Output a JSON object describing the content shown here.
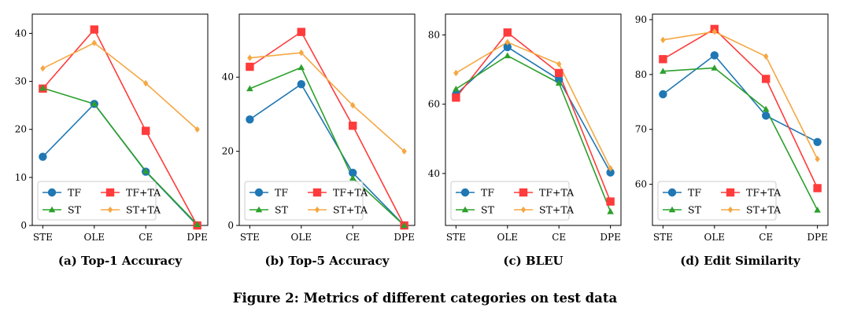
{
  "figure_caption": "Figure 2: Metrics of different categories on test data",
  "colors": {
    "TF": "#1f77b4",
    "TF+TA": "#ff3b3b",
    "ST": "#2ca02c",
    "ST+TA": "#f5a742"
  },
  "chart_data": [
    {
      "type": "line",
      "caption": "(a) Top-1 Accuracy",
      "categories": [
        "STE",
        "OLE",
        "CE",
        "DPE"
      ],
      "ylim": [
        0,
        44
      ],
      "yticks": [
        0,
        10,
        20,
        30,
        40
      ],
      "legend_placement": "lower-left",
      "grid": false,
      "series": [
        {
          "name": "TF",
          "values": [
            14.3,
            25.3,
            11.2,
            0.0
          ]
        },
        {
          "name": "TF+TA",
          "values": [
            28.5,
            40.8,
            19.7,
            0.0
          ]
        },
        {
          "name": "ST",
          "values": [
            28.6,
            25.3,
            11.3,
            0.2
          ]
        },
        {
          "name": "ST+TA",
          "values": [
            32.7,
            38.0,
            29.6,
            20.0
          ]
        }
      ]
    },
    {
      "type": "line",
      "caption": "(b) Top-5 Accuracy",
      "categories": [
        "STE",
        "OLE",
        "CE",
        "DPE"
      ],
      "ylim": [
        0,
        57
      ],
      "yticks": [
        0,
        20,
        40
      ],
      "legend_placement": "lower-left",
      "grid": false,
      "series": [
        {
          "name": "TF",
          "values": [
            28.6,
            38.1,
            14.2,
            0.0
          ]
        },
        {
          "name": "TF+TA",
          "values": [
            42.8,
            52.2,
            26.9,
            0.0
          ]
        },
        {
          "name": "ST",
          "values": [
            36.9,
            42.6,
            12.8,
            0.0
          ]
        },
        {
          "name": "ST+TA",
          "values": [
            45.2,
            46.6,
            32.4,
            20.0
          ]
        }
      ]
    },
    {
      "type": "line",
      "caption": "(c) BLEU",
      "categories": [
        "STE",
        "OLE",
        "CE",
        "DPE"
      ],
      "ylim": [
        25,
        86
      ],
      "yticks": [
        40,
        60,
        80
      ],
      "legend_placement": "lower-left",
      "grid": false,
      "series": [
        {
          "name": "TF",
          "values": [
            62.8,
            76.5,
            67.1,
            40.3
          ]
        },
        {
          "name": "TF+TA",
          "values": [
            61.9,
            80.7,
            69.0,
            31.9
          ]
        },
        {
          "name": "ST",
          "values": [
            64.4,
            74.0,
            66.1,
            29.0
          ]
        },
        {
          "name": "ST+TA",
          "values": [
            69.0,
            77.9,
            71.6,
            41.5
          ]
        }
      ]
    },
    {
      "type": "line",
      "caption": "(d) Edit Similarity",
      "categories": [
        "STE",
        "OLE",
        "CE",
        "DPE"
      ],
      "ylim": [
        52.5,
        91
      ],
      "yticks": [
        60,
        70,
        80,
        90
      ],
      "legend_placement": "lower-left",
      "grid": false,
      "series": [
        {
          "name": "TF",
          "values": [
            76.4,
            83.5,
            72.5,
            67.7
          ]
        },
        {
          "name": "TF+TA",
          "values": [
            82.8,
            88.3,
            79.2,
            59.3
          ]
        },
        {
          "name": "ST",
          "values": [
            80.6,
            81.2,
            73.7,
            55.3
          ]
        },
        {
          "name": "ST+TA",
          "values": [
            86.3,
            87.8,
            83.3,
            64.6
          ]
        }
      ]
    }
  ]
}
